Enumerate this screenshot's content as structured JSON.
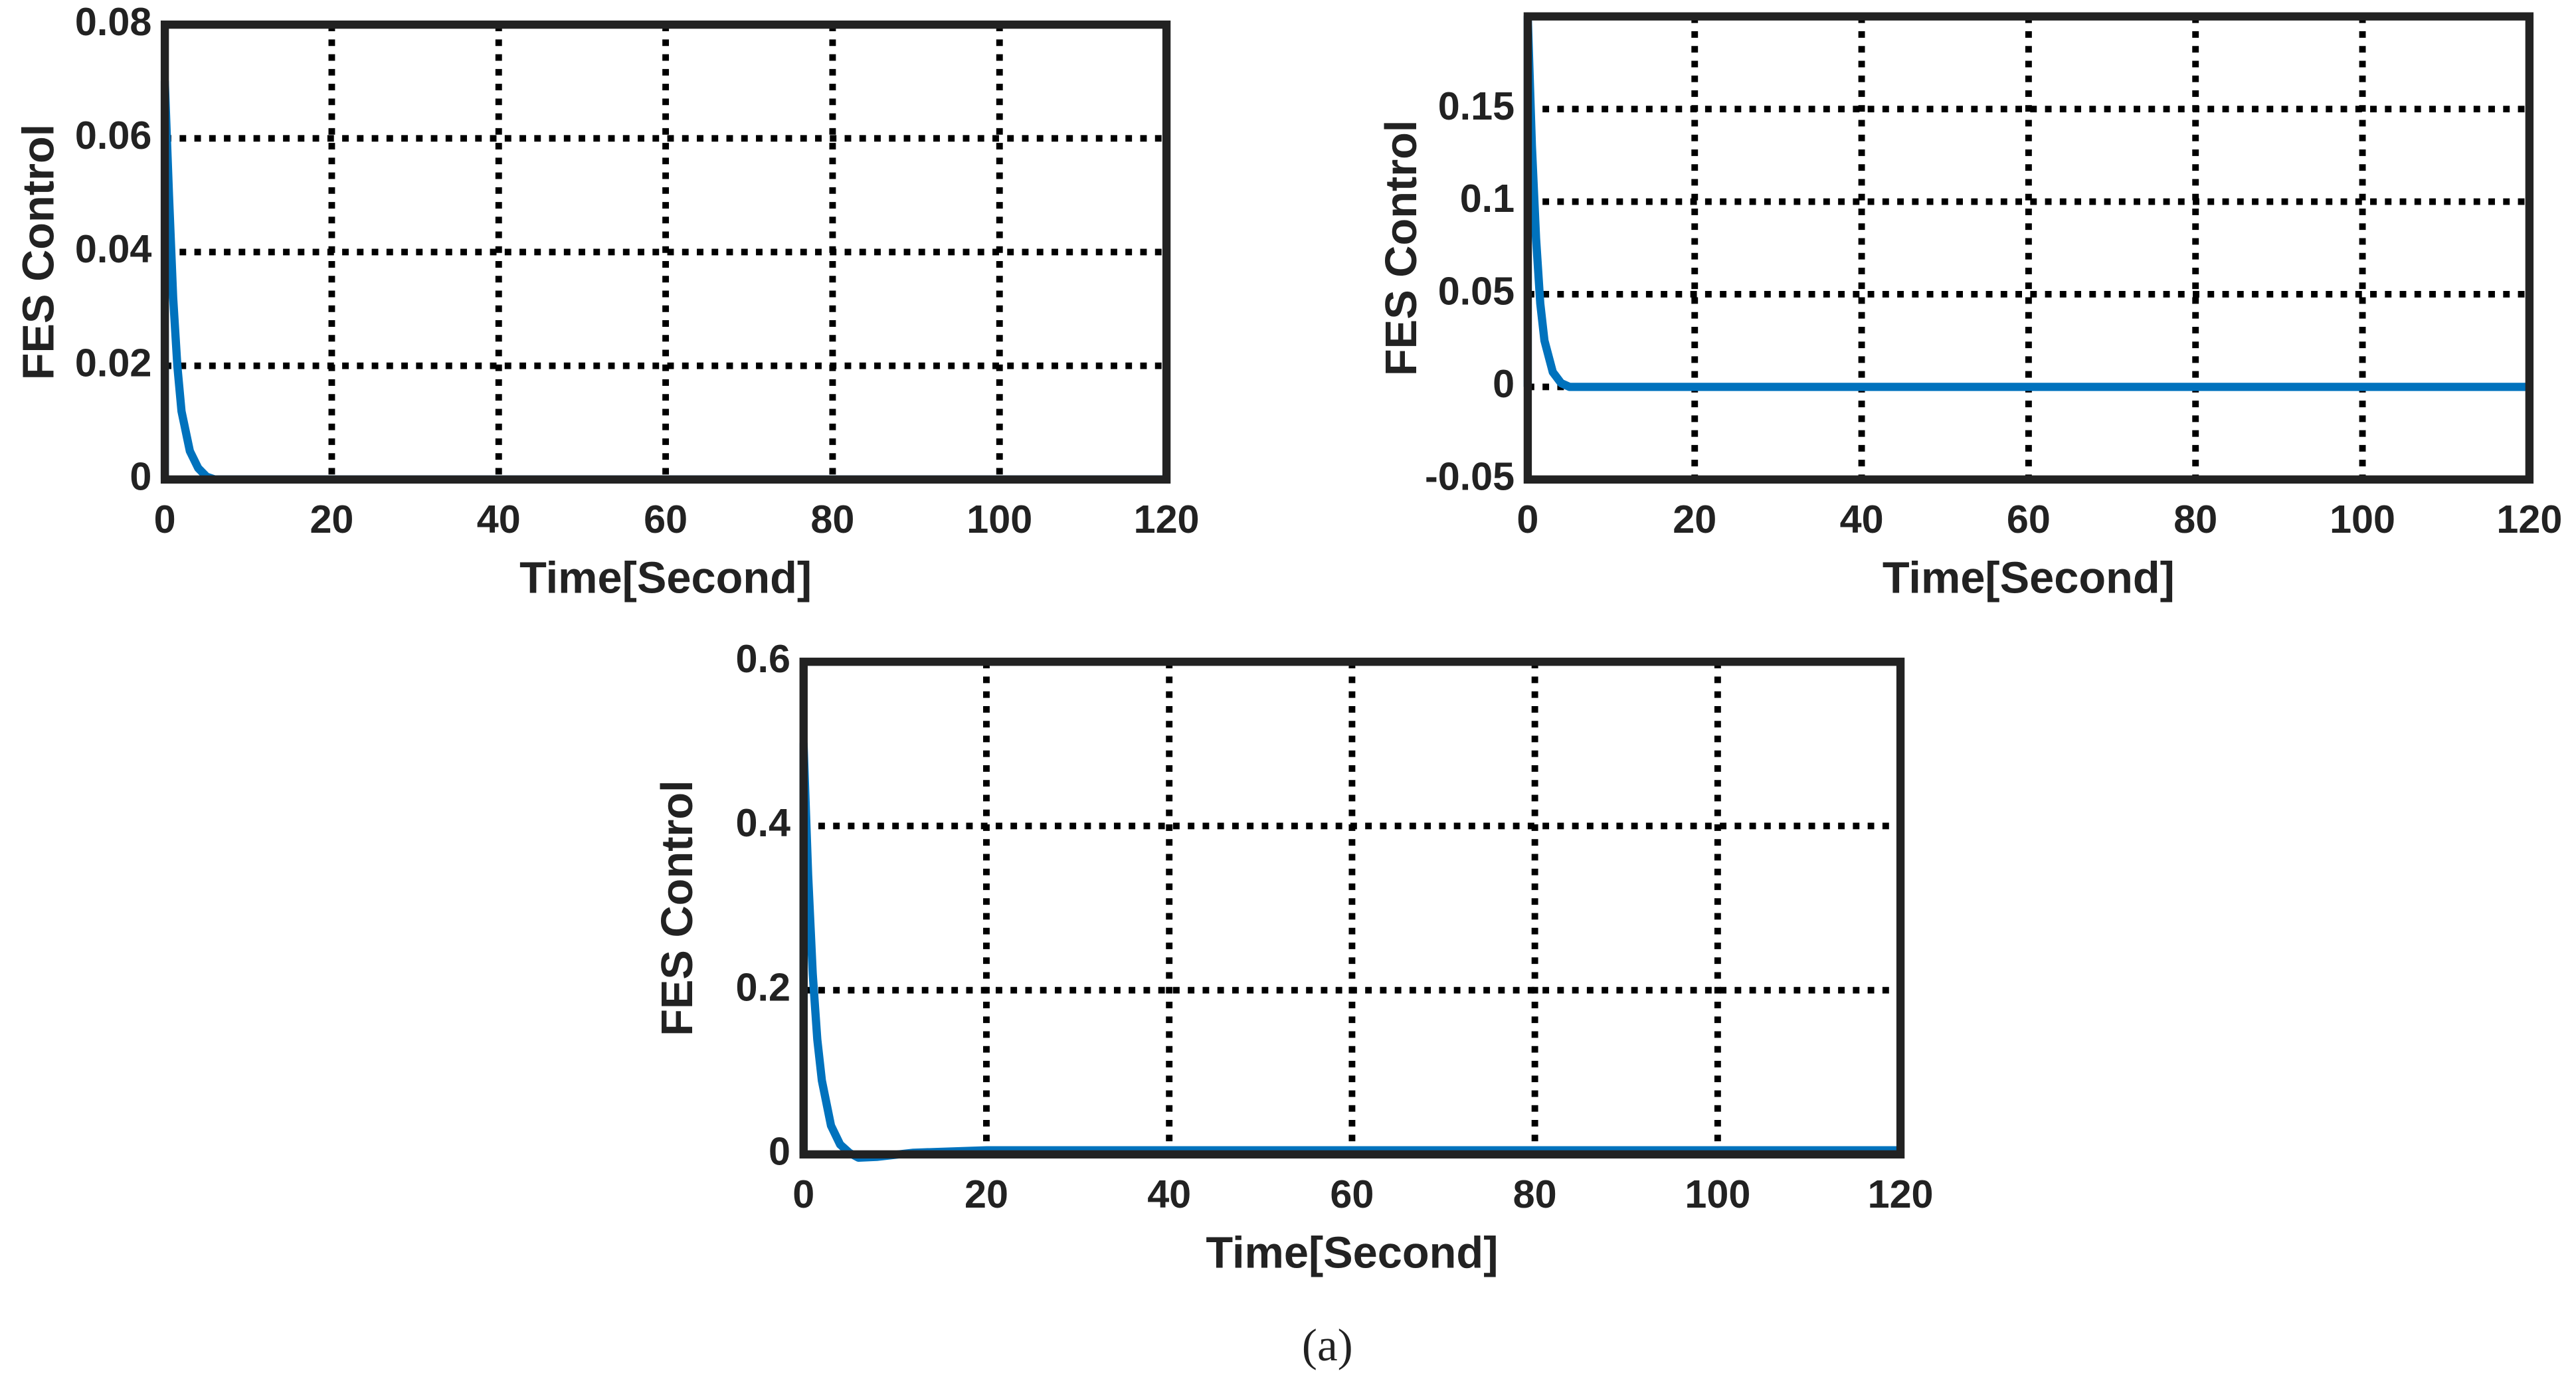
{
  "chart_data": [
    {
      "type": "line",
      "color": "#0072bd",
      "grid": true,
      "x": [
        0,
        0,
        0.5,
        1,
        1.5,
        2,
        3,
        4,
        5,
        6,
        8,
        120
      ],
      "values": [
        0,
        0.07,
        0.05,
        0.032,
        0.02,
        0.012,
        0.005,
        0.002,
        0.0005,
        0,
        0,
        0
      ],
      "xlim": [
        0,
        120
      ],
      "xticks": [
        0,
        20,
        40,
        60,
        80,
        100,
        120
      ],
      "ylim": [
        0,
        0.08
      ],
      "yticks": [
        0,
        0.02,
        0.04,
        0.06,
        0.08
      ],
      "xlabel": "Time[Second]",
      "ylabel": "FES Control"
    },
    {
      "type": "line",
      "color": "#0072bd",
      "grid": true,
      "x": [
        0,
        0,
        0.5,
        1,
        1.5,
        2,
        3,
        4,
        5,
        6,
        8,
        120
      ],
      "values": [
        0,
        0.2,
        0.13,
        0.08,
        0.045,
        0.025,
        0.008,
        0.002,
        0,
        0,
        0,
        0
      ],
      "xlim": [
        0,
        120
      ],
      "xticks": [
        0,
        20,
        40,
        60,
        80,
        100,
        120
      ],
      "ylim": [
        -0.05,
        0.2
      ],
      "yticks": [
        -0.05,
        0,
        0.05,
        0.1,
        0.15
      ],
      "xlabel": "Time[Second]",
      "ylabel": "FES Control"
    },
    {
      "type": "line",
      "color": "#0072bd",
      "grid": true,
      "x": [
        0,
        0,
        0.5,
        1,
        1.5,
        2,
        3,
        4,
        5,
        6,
        8,
        12,
        20,
        120
      ],
      "values": [
        0,
        0.5,
        0.34,
        0.22,
        0.14,
        0.09,
        0.035,
        0.012,
        0.002,
        -0.004,
        -0.003,
        0.002,
        0.005,
        0.005
      ],
      "xlim": [
        0,
        120
      ],
      "xticks": [
        0,
        20,
        40,
        60,
        80,
        100,
        120
      ],
      "ylim": [
        0,
        0.6
      ],
      "yticks": [
        0,
        0.2,
        0.4,
        0.6
      ],
      "xlabel": "Time[Second]",
      "ylabel": "FES Control"
    }
  ],
  "caption": "(a)"
}
